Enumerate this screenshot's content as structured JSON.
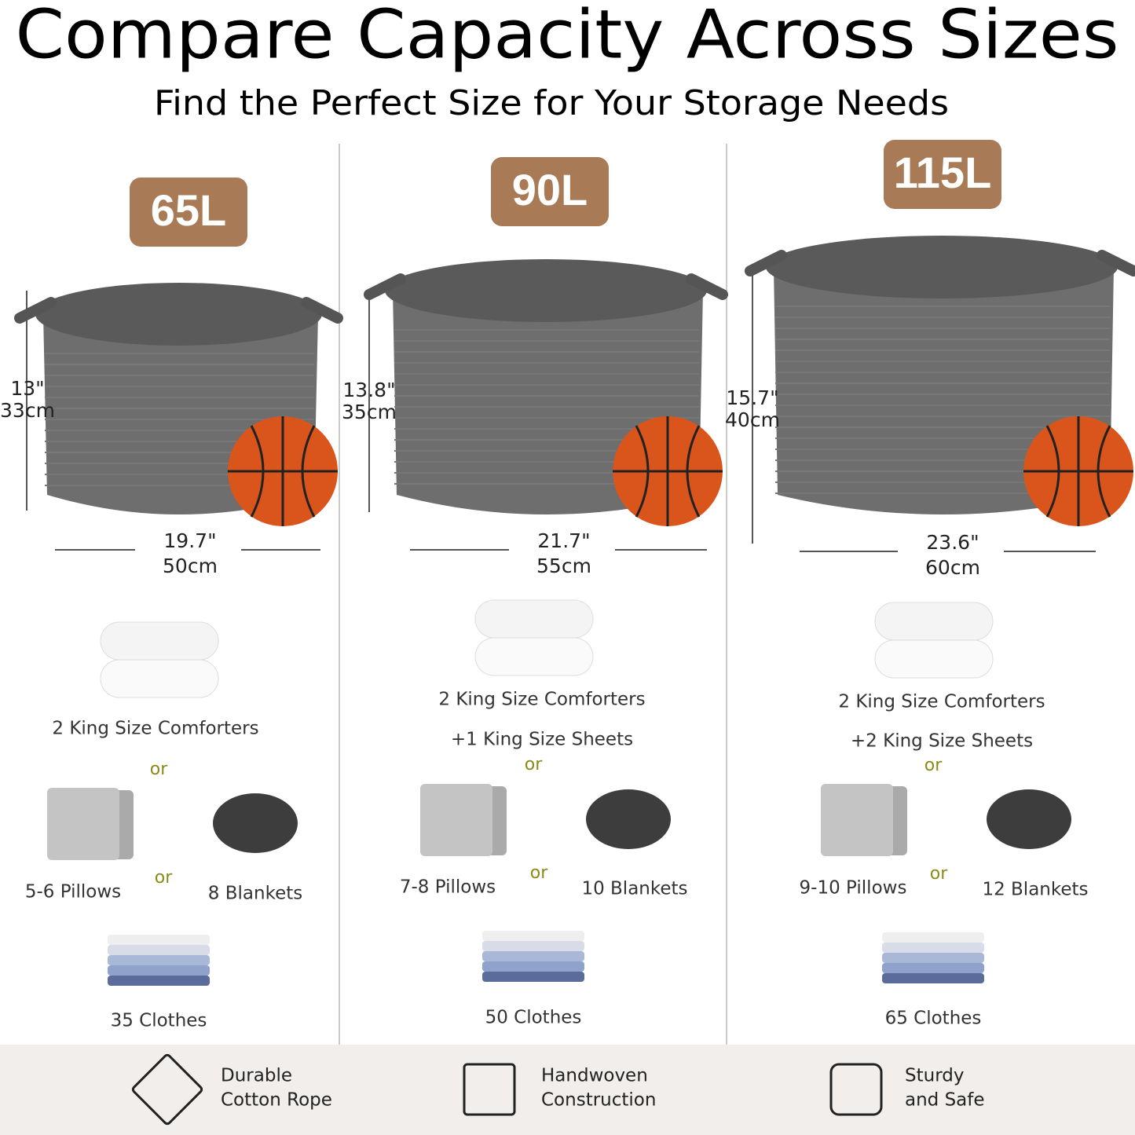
{
  "header": {
    "title": "Compare Capacity Across Sizes",
    "subtitle": "Find the Perfect Size for Your Storage Needs"
  },
  "separator": "or",
  "sizes": [
    {
      "capacity": "65L",
      "height": [
        "13\"",
        "33cm"
      ],
      "width": [
        "19.7\"",
        "50cm"
      ],
      "comforters": "2 King Size Comforters",
      "pillows": "5-6 Pillows",
      "blankets": "8 Blankets",
      "clothes": "35 Clothes"
    },
    {
      "capacity": "90L",
      "height": [
        "13.8\"",
        "35cm"
      ],
      "width": [
        "21.7\"",
        "55cm"
      ],
      "comforters": "2 King Size Comforters",
      "sheets": "+1 King Size Sheets",
      "pillows": "7-8 Pillows",
      "blankets": "10 Blankets",
      "clothes": "50 Clothes"
    },
    {
      "capacity": "115L",
      "height": [
        "15.7\"",
        "40cm"
      ],
      "width": [
        "23.6\"",
        "60cm"
      ],
      "comforters": "2 King Size Comforters",
      "sheets": "+2 King Size Sheets",
      "pillows": "9-10 Pillows",
      "blankets": "12 Blankets",
      "clothes": "65 Clothes"
    }
  ],
  "features": [
    {
      "lines": [
        "Durable",
        "Cotton Rope"
      ]
    },
    {
      "lines": [
        "Handwoven",
        "Construction"
      ]
    },
    {
      "lines": [
        "Sturdy",
        "and Safe"
      ]
    }
  ]
}
